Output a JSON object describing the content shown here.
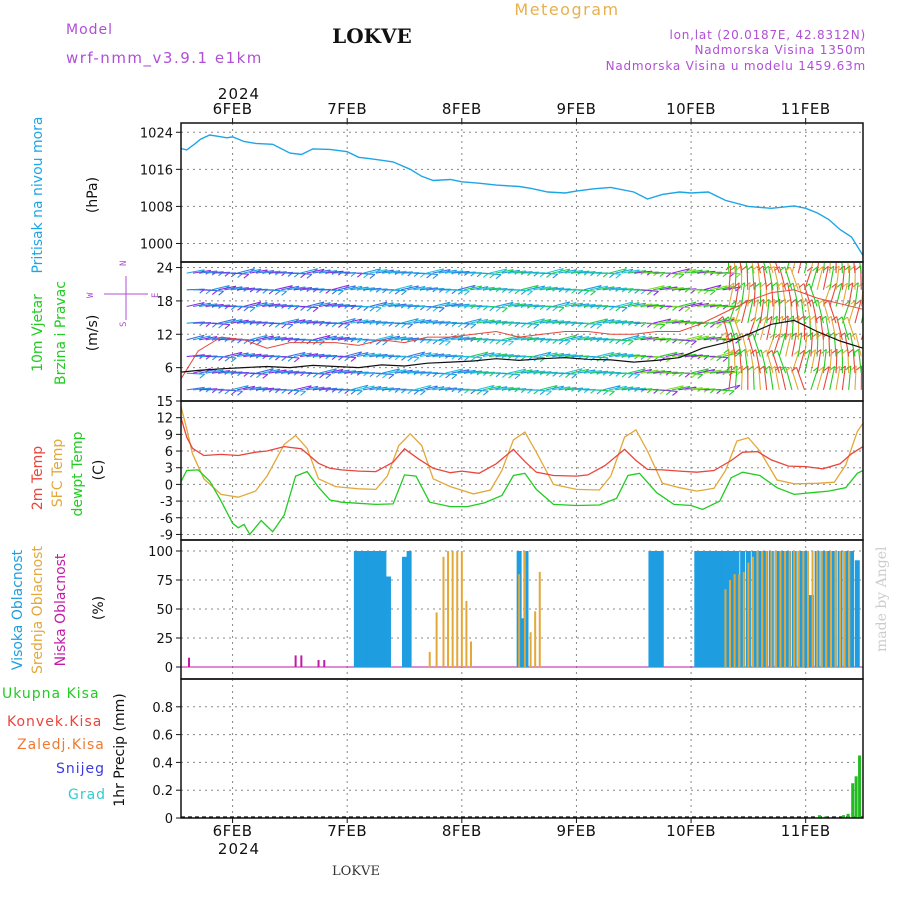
{
  "header": {
    "model_label": "Model",
    "model_name": "wrf-nmm_v3.9.1 e1km",
    "station": "LOKVE",
    "meteogram": "Meteogram",
    "lonlat": "lon,lat (20.0187E, 42.8312N)",
    "altitude": "Nadmorska Visina 1350m",
    "model_altitude": "Nadmorska Visina u modelu 1459.63m",
    "footer_station": "LOKVE",
    "credit": "made by Angel"
  },
  "colors": {
    "pressure": "#1ea5e6",
    "t2m": "#e8463c",
    "sfc": "#e3a83a",
    "dew": "#22cc22",
    "high_cloud": "#1e9de0",
    "mid_cloud": "#e3a83a",
    "low_cloud": "#c21aa8",
    "precip": "#22bb22",
    "title_orange": "#e8b04e",
    "title_purple": "#b04fd6"
  },
  "chart_data": [
    {
      "type": "line",
      "panel": "pressure",
      "ylabel_lines": [
        "Pritisak na nivou mora",
        "(hPa)"
      ],
      "xlim": [
        5.55,
        11.5
      ],
      "ylim": [
        996,
        1026
      ],
      "yticks": [
        1000,
        1008,
        1016,
        1024
      ],
      "x_top": [
        "6FEB",
        "7FEB",
        "8FEB",
        "9FEB",
        "10FEB",
        "11FEB"
      ],
      "year_top": "2024",
      "series": [
        {
          "x": [
            5.55,
            5.6,
            5.67,
            5.72,
            5.8,
            5.88,
            5.95,
            6.0,
            6.1,
            6.2,
            6.35,
            6.5,
            6.6,
            6.7,
            6.85,
            7.0,
            7.1,
            7.2,
            7.4,
            7.55,
            7.65,
            7.75,
            7.9,
            8.0,
            8.15,
            8.3,
            8.5,
            8.6,
            8.75,
            8.9,
            9.0,
            9.15,
            9.3,
            9.5,
            9.62,
            9.75,
            9.9,
            10.0,
            10.15,
            10.3,
            10.5,
            10.7,
            10.9,
            11.0,
            11.1,
            11.2,
            11.3,
            11.4,
            11.5
          ],
          "values": [
            1020.5,
            1020.2,
            1021.5,
            1022.5,
            1023.4,
            1023.1,
            1022.8,
            1023.0,
            1022.0,
            1021.6,
            1021.4,
            1019.5,
            1019.2,
            1020.4,
            1020.3,
            1019.8,
            1018.6,
            1018.3,
            1017.6,
            1016.0,
            1014.5,
            1013.6,
            1013.8,
            1013.3,
            1013.0,
            1012.6,
            1012.3,
            1011.9,
            1011.1,
            1010.9,
            1011.3,
            1011.8,
            1012.1,
            1011.1,
            1009.6,
            1010.6,
            1011.1,
            1010.9,
            1011.1,
            1009.3,
            1008.0,
            1007.6,
            1008.1,
            1007.6,
            1006.6,
            1005.2,
            1003.0,
            1001.4,
            997.4
          ]
        }
      ]
    },
    {
      "type": "line",
      "panel": "wind",
      "ylabel_lines": [
        "10m Vjetar",
        "Brzina i Pravac",
        "(m/s)"
      ],
      "compass": [
        "N",
        "W",
        "E",
        "S"
      ],
      "ylim": [
        0,
        25
      ],
      "yticks": [
        6,
        12,
        18,
        24
      ],
      "series": [
        {
          "name": "speed",
          "x": [
            5.55,
            5.7,
            5.9,
            6.1,
            6.3,
            6.5,
            6.7,
            6.9,
            7.1,
            7.3,
            7.5,
            7.7,
            7.9,
            8.1,
            8.3,
            8.5,
            8.7,
            8.9,
            9.1,
            9.3,
            9.5,
            9.7,
            9.9,
            10.1,
            10.3,
            10.5,
            10.7,
            10.9,
            11.1,
            11.3,
            11.5
          ],
          "values": [
            5.2,
            5.5,
            5.8,
            6.0,
            6.2,
            6.0,
            6.4,
            6.2,
            6.0,
            6.5,
            6.3,
            6.8,
            7.0,
            7.2,
            7.6,
            7.3,
            7.6,
            7.8,
            7.5,
            7.4,
            7.0,
            7.3,
            7.8,
            9.5,
            10.5,
            12.0,
            13.8,
            14.5,
            12.5,
            10.8,
            9.5
          ]
        },
        {
          "name": "gust",
          "x": [
            5.55,
            5.7,
            5.9,
            6.1,
            6.3,
            6.5,
            6.7,
            6.9,
            7.1,
            7.3,
            7.5,
            7.7,
            7.9,
            8.1,
            8.3,
            8.5,
            8.7,
            8.9,
            9.1,
            9.3,
            9.5,
            9.7,
            9.9,
            10.1,
            10.3,
            10.5,
            10.7,
            10.9,
            11.1,
            11.3,
            11.5
          ],
          "values": [
            4.0,
            9.0,
            11.5,
            11.0,
            9.5,
            10.5,
            10.5,
            10.5,
            10.0,
            11.0,
            10.5,
            11.5,
            11.5,
            12.0,
            12.5,
            11.5,
            12.0,
            12.5,
            12.5,
            12.0,
            12.0,
            12.5,
            12.5,
            14.0,
            16.0,
            18.0,
            19.5,
            20.0,
            18.5,
            17.5,
            16.5
          ]
        }
      ]
    },
    {
      "type": "line",
      "panel": "temperature",
      "ylabel_lines": [
        "2m Temp",
        "SFC Temp",
        "dewpt Temp",
        "(C)"
      ],
      "ylim": [
        -10,
        15
      ],
      "yticks": [
        -9,
        -6,
        -3,
        0,
        3,
        6,
        9,
        12,
        15
      ],
      "series": [
        {
          "name": "2m Temp",
          "x": [
            5.55,
            5.6,
            5.65,
            5.75,
            5.9,
            6.05,
            6.2,
            6.3,
            6.45,
            6.6,
            6.75,
            6.85,
            6.95,
            7.1,
            7.25,
            7.4,
            7.5,
            7.62,
            7.75,
            7.9,
            8.0,
            8.15,
            8.3,
            8.45,
            8.55,
            8.65,
            8.8,
            9.0,
            9.1,
            9.25,
            9.42,
            9.52,
            9.62,
            9.75,
            9.9,
            10.05,
            10.2,
            10.35,
            10.45,
            10.58,
            10.7,
            10.85,
            11.0,
            11.15,
            11.3,
            11.4,
            11.5
          ],
          "values": [
            12.0,
            8.5,
            6.5,
            5.2,
            5.4,
            5.2,
            5.8,
            6.0,
            6.8,
            6.4,
            3.8,
            2.9,
            2.6,
            2.4,
            2.3,
            4.0,
            6.4,
            4.6,
            2.9,
            2.1,
            2.4,
            2.0,
            3.7,
            6.3,
            4.1,
            2.2,
            1.6,
            1.5,
            1.7,
            3.4,
            6.3,
            4.3,
            2.7,
            2.6,
            2.4,
            2.2,
            2.5,
            4.3,
            5.8,
            5.9,
            4.4,
            3.3,
            3.2,
            2.8,
            3.7,
            5.5,
            6.8
          ]
        },
        {
          "name": "SFC Temp",
          "x": [
            5.55,
            5.6,
            5.65,
            5.75,
            5.9,
            6.05,
            6.2,
            6.3,
            6.45,
            6.55,
            6.65,
            6.75,
            6.9,
            7.1,
            7.25,
            7.35,
            7.45,
            7.55,
            7.65,
            7.75,
            7.9,
            8.1,
            8.25,
            8.35,
            8.45,
            8.55,
            8.65,
            8.8,
            9.0,
            9.2,
            9.3,
            9.42,
            9.52,
            9.62,
            9.75,
            9.9,
            10.05,
            10.2,
            10.3,
            10.4,
            10.5,
            10.6,
            10.75,
            10.9,
            11.1,
            11.25,
            11.35,
            11.45,
            11.5
          ],
          "values": [
            14.0,
            10.0,
            5.5,
            1.0,
            -1.8,
            -2.3,
            -1.2,
            1.5,
            7.2,
            8.8,
            6.5,
            1.0,
            -0.4,
            -0.8,
            -0.9,
            1.5,
            7.0,
            9.1,
            7.0,
            1.0,
            -0.4,
            -1.7,
            -1.0,
            2.5,
            8.0,
            9.4,
            5.8,
            0.0,
            -0.9,
            -1.0,
            1.5,
            8.5,
            9.8,
            6.0,
            0.2,
            -0.6,
            -1.2,
            -0.7,
            2.5,
            7.8,
            8.4,
            6.0,
            0.8,
            0.1,
            0.2,
            0.4,
            3.5,
            9.5,
            11.0
          ]
        },
        {
          "name": "dewpt Temp",
          "x": [
            5.55,
            5.6,
            5.7,
            5.8,
            5.9,
            6.0,
            6.05,
            6.1,
            6.15,
            6.25,
            6.35,
            6.45,
            6.55,
            6.65,
            6.75,
            6.85,
            6.95,
            7.1,
            7.25,
            7.4,
            7.5,
            7.6,
            7.72,
            7.9,
            8.05,
            8.2,
            8.35,
            8.45,
            8.55,
            8.65,
            8.8,
            9.0,
            9.2,
            9.35,
            9.45,
            9.55,
            9.7,
            9.85,
            10.0,
            10.1,
            10.25,
            10.35,
            10.45,
            10.6,
            10.75,
            10.9,
            11.05,
            11.2,
            11.35,
            11.45,
            11.5
          ],
          "values": [
            0.5,
            2.5,
            2.6,
            0.6,
            -3.0,
            -7.0,
            -7.8,
            -7.2,
            -9.0,
            -6.5,
            -8.5,
            -5.5,
            1.5,
            2.3,
            -0.5,
            -2.8,
            -3.2,
            -3.4,
            -3.6,
            -3.5,
            1.7,
            1.5,
            -3.2,
            -4.0,
            -4.0,
            -3.3,
            -2.0,
            1.6,
            2.0,
            -0.9,
            -3.6,
            -3.8,
            -3.7,
            -2.5,
            1.6,
            2.0,
            -1.5,
            -3.6,
            -3.8,
            -4.5,
            -3.0,
            1.2,
            2.2,
            1.6,
            -0.6,
            -1.8,
            -1.5,
            -1.2,
            -0.6,
            2.0,
            2.5
          ]
        }
      ]
    },
    {
      "type": "bar",
      "panel": "cloud",
      "ylabel_lines": [
        "Visoka Oblacnost",
        "Srednja Oblacnost",
        "Niska Oblacnost",
        "(%)"
      ],
      "ylim": [
        0,
        100
      ],
      "yticks": [
        0,
        25,
        50,
        75,
        100
      ],
      "series": [
        {
          "name": "Visoka Oblacnost",
          "x": [
            7.08,
            7.12,
            7.16,
            7.2,
            7.24,
            7.28,
            7.32,
            7.36,
            7.5,
            7.54,
            8.5,
            8.53,
            8.56,
            9.65,
            9.68,
            9.71,
            9.74,
            10.05,
            10.08,
            10.12,
            10.16,
            10.2,
            10.24,
            10.28,
            10.32,
            10.36,
            10.4,
            10.45,
            10.5,
            10.55,
            10.6,
            10.65,
            10.7,
            10.75,
            10.8,
            10.85,
            10.9,
            10.95,
            11.0,
            11.05,
            11.1,
            11.15,
            11.2,
            11.25,
            11.3,
            11.35,
            11.4,
            11.45
          ],
          "values": [
            100,
            100,
            100,
            100,
            100,
            100,
            100,
            78,
            95,
            100,
            100,
            42,
            100,
            100,
            100,
            100,
            100,
            100,
            100,
            100,
            100,
            100,
            100,
            100,
            100,
            100,
            100,
            100,
            100,
            100,
            100,
            100,
            100,
            100,
            100,
            100,
            100,
            100,
            100,
            62,
            100,
            100,
            100,
            100,
            100,
            100,
            100,
            92
          ]
        },
        {
          "name": "Srednja Oblacnost",
          "x": [
            7.72,
            7.78,
            7.84,
            7.88,
            7.92,
            7.96,
            8.0,
            8.04,
            8.08,
            8.5,
            8.55,
            8.6,
            8.64,
            8.68,
            10.3,
            10.34,
            10.38,
            10.42,
            10.46,
            10.5,
            10.54,
            10.58,
            10.62,
            10.66,
            10.7,
            10.74,
            10.78,
            10.82,
            10.86,
            10.9,
            10.94,
            10.98,
            11.02,
            11.06,
            11.1,
            11.14,
            11.18,
            11.22,
            11.26,
            11.3,
            11.34,
            11.38
          ],
          "values": [
            13,
            47,
            95,
            100,
            100,
            100,
            100,
            57,
            22,
            80,
            100,
            30,
            48,
            82,
            67,
            75,
            80,
            80,
            82,
            90,
            95,
            100,
            100,
            100,
            100,
            100,
            100,
            100,
            100,
            100,
            100,
            100,
            100,
            100,
            100,
            100,
            100,
            100,
            100,
            100,
            100,
            100
          ]
        },
        {
          "name": "Niska Oblacnost",
          "x": [
            5.62,
            6.55,
            6.6,
            6.75,
            6.8
          ],
          "values": [
            8,
            10,
            10,
            6,
            6
          ]
        }
      ]
    },
    {
      "type": "bar",
      "panel": "precip",
      "ylabel_lines": [
        "1hr Precip (mm)"
      ],
      "legend": [
        "Ukupna Kisa",
        "Konvek.Kisa",
        "Zaledj.Kisa",
        "Snijeg",
        "Grad"
      ],
      "ylim": [
        0,
        1.0
      ],
      "yticks": [
        "0",
        "0.2",
        "0.4",
        "0.6",
        "0.8"
      ],
      "x_bottom": [
        "6FEB",
        "7FEB",
        "8FEB",
        "9FEB",
        "10FEB",
        "11FEB"
      ],
      "year_bottom": "2024",
      "series": [
        {
          "name": "Ukupna Kisa",
          "x": [
            11.12,
            11.17,
            11.33,
            11.37,
            11.41,
            11.44,
            11.47
          ],
          "values": [
            0.02,
            0.01,
            0.02,
            0.03,
            0.25,
            0.3,
            0.45
          ]
        }
      ]
    }
  ]
}
